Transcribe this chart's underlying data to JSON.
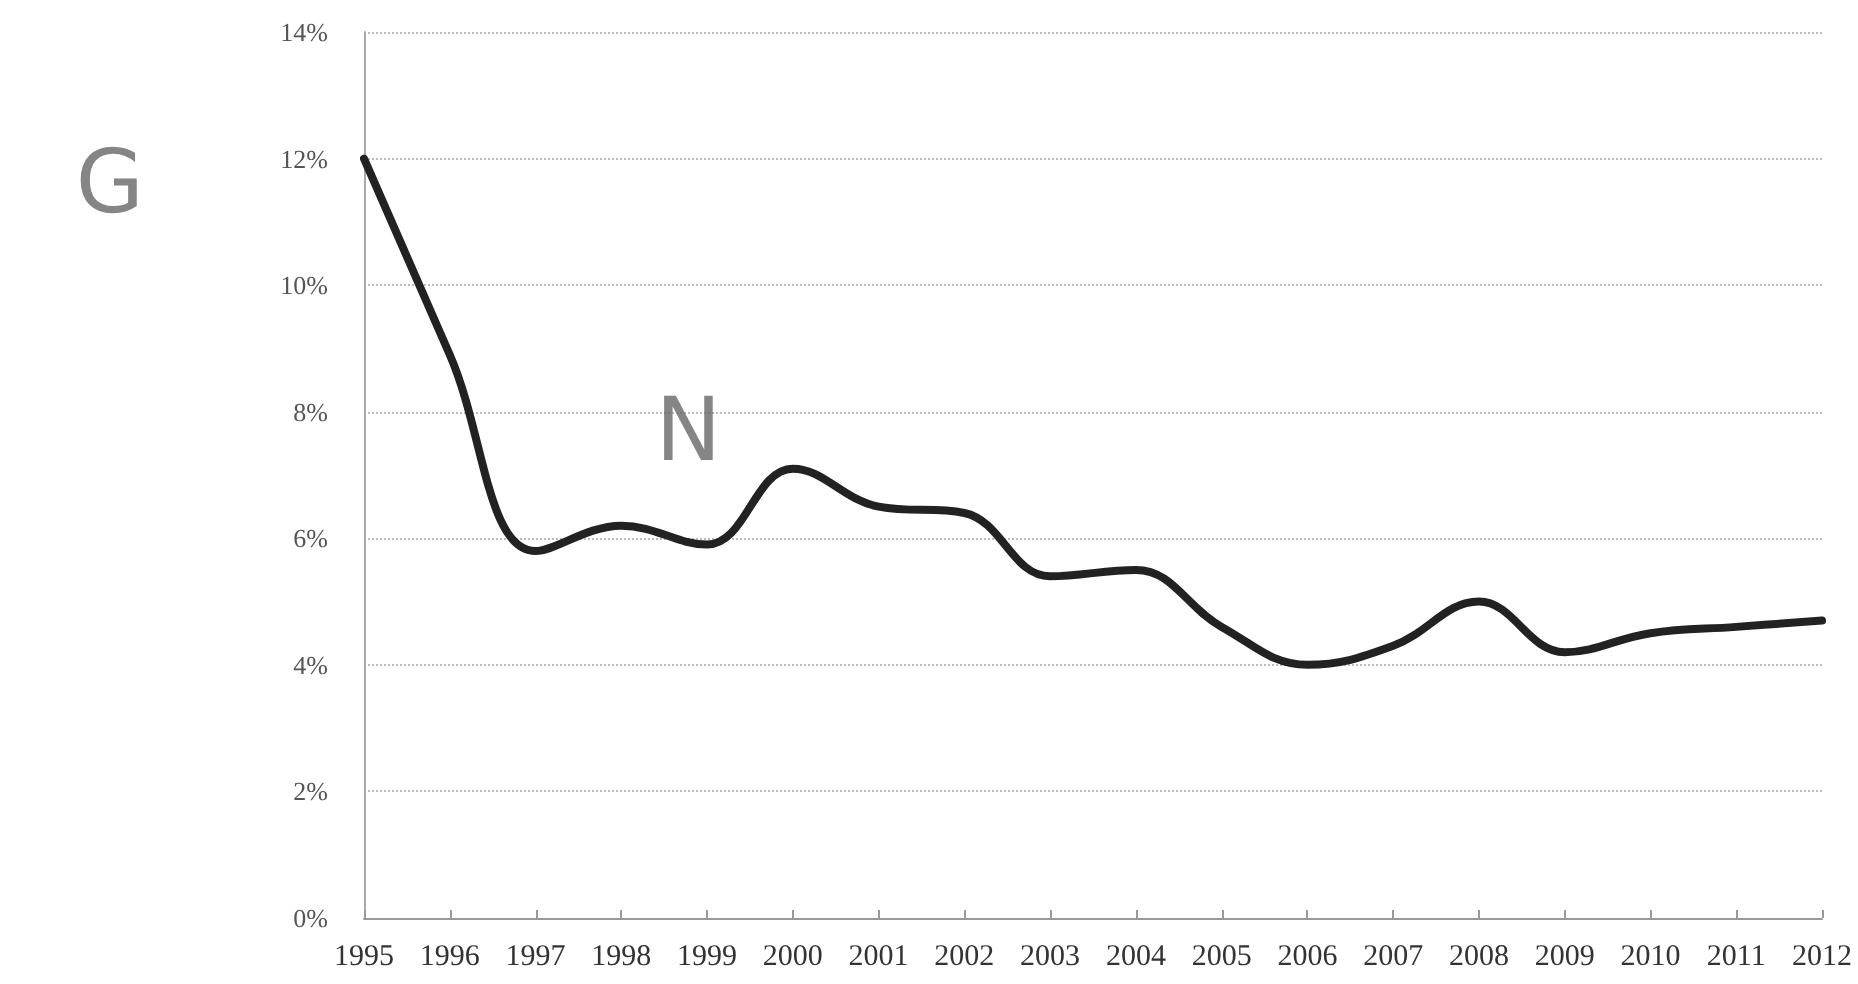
{
  "chart_data": {
    "type": "line",
    "categories": [
      "1995",
      "1996",
      "1997",
      "1998",
      "1999",
      "2000",
      "2001",
      "2002",
      "2003",
      "2004",
      "2005",
      "2006",
      "2007",
      "2008",
      "2009",
      "2010",
      "2011",
      "2012"
    ],
    "series": [
      {
        "color": "#222222",
        "values": [
          12,
          8.9,
          5.8,
          6.2,
          5.9,
          7.1,
          6.5,
          6.4,
          5.4,
          5.5,
          4.6,
          4.0,
          4.3,
          5.0,
          4.2,
          4.5,
          4.6,
          4.7
        ]
      }
    ],
    "ylim": [
      0,
      14
    ],
    "yticks": [
      {
        "value": 0,
        "label": "0%"
      },
      {
        "value": 2,
        "label": "2%"
      },
      {
        "value": 4,
        "label": "4%"
      },
      {
        "value": 6,
        "label": "6%"
      },
      {
        "value": 8,
        "label": "8%"
      },
      {
        "value": 10,
        "label": "10%"
      },
      {
        "value": 12,
        "label": "12%"
      },
      {
        "value": 14,
        "label": "14%"
      }
    ],
    "grid": "y",
    "marker": "none",
    "line_style": "solid",
    "annotations": [
      {
        "text": "G",
        "x": "1995",
        "y": 12
      },
      {
        "text": "N",
        "x": "1997",
        "y": 5.8
      }
    ]
  }
}
